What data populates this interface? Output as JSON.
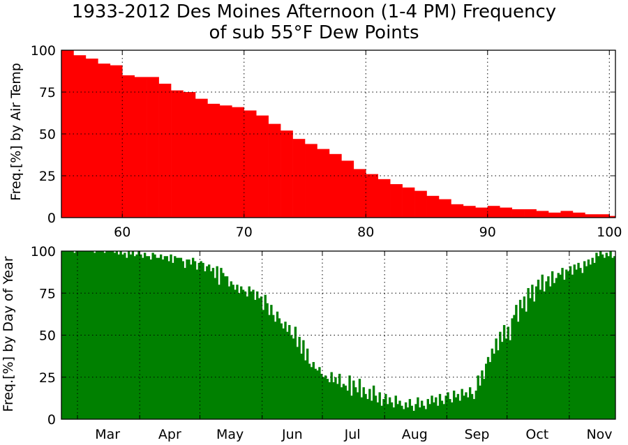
{
  "title_line1": "1933-2012 Des Moines Afternoon (1-4 PM) Frequency",
  "title_line2": "of sub 55°F Dew Points",
  "chart_data": [
    {
      "type": "bar",
      "name": "air-temp",
      "ylabel": "Freq.[%] by Air Temp",
      "xlim": [
        55,
        100.5
      ],
      "ylim": [
        0,
        100
      ],
      "xticks": [
        "60",
        "70",
        "80",
        "90",
        "100"
      ],
      "xtick_values": [
        60,
        70,
        80,
        90,
        100
      ],
      "yticks": [
        "0",
        "25",
        "50",
        "75",
        "100"
      ],
      "ytick_values": [
        0,
        25,
        50,
        75,
        100
      ],
      "grid": true,
      "color": "#ff0000",
      "x": [
        55,
        56,
        57,
        58,
        59,
        60,
        61,
        62,
        63,
        64,
        65,
        66,
        67,
        68,
        69,
        70,
        71,
        72,
        73,
        74,
        75,
        76,
        77,
        78,
        79,
        80,
        81,
        82,
        83,
        84,
        85,
        86,
        87,
        88,
        89,
        90,
        91,
        92,
        93,
        94,
        95,
        96,
        97,
        98,
        99,
        100
      ],
      "values": [
        100,
        97,
        95,
        92,
        91,
        85,
        84,
        84,
        80,
        76,
        75,
        71,
        68,
        67,
        66,
        64,
        61,
        56,
        52,
        47,
        44,
        41,
        38,
        34,
        29,
        26,
        23,
        20,
        18,
        16,
        13,
        11,
        8,
        7,
        6,
        7,
        6,
        5,
        5,
        4,
        3,
        4,
        3,
        2,
        2,
        1
      ]
    },
    {
      "type": "bar",
      "name": "day-of-year",
      "ylabel": "Freq.[%] by Day of Year",
      "ylim": [
        0,
        100
      ],
      "yticks": [
        "0",
        "25",
        "50",
        "75",
        "100"
      ],
      "ytick_values": [
        0,
        25,
        50,
        75,
        100
      ],
      "months": [
        "Mar",
        "Apr",
        "May",
        "Jun",
        "Jul",
        "Aug",
        "Sep",
        "Oct",
        "Nov"
      ],
      "grid": true,
      "color": "#008000",
      "x_start": "Feb 21",
      "x_end": "Nov 30",
      "values": [
        100,
        100,
        100,
        100,
        100,
        100,
        99,
        100,
        100,
        100,
        100,
        100,
        100,
        100,
        100,
        100,
        99,
        100,
        100,
        100,
        100,
        99,
        100,
        100,
        100,
        100,
        99,
        100,
        98,
        100,
        98,
        99,
        96,
        100,
        98,
        100,
        97,
        98,
        100,
        98,
        96,
        99,
        97,
        97,
        95,
        99,
        98,
        96,
        96,
        98,
        95,
        97,
        97,
        94,
        98,
        93,
        97,
        96,
        96,
        96,
        94,
        90,
        95,
        95,
        92,
        96,
        94,
        89,
        93,
        94,
        93,
        88,
        91,
        92,
        88,
        90,
        84,
        91,
        80,
        90,
        87,
        85,
        85,
        79,
        82,
        80,
        77,
        80,
        75,
        79,
        77,
        76,
        73,
        79,
        76,
        77,
        71,
        76,
        72,
        73,
        65,
        74,
        69,
        62,
        68,
        62,
        58,
        64,
        60,
        57,
        54,
        58,
        52,
        56,
        50,
        48,
        55,
        43,
        49,
        39,
        47,
        35,
        42,
        33,
        31,
        34,
        30,
        29,
        31,
        27,
        25,
        26,
        24,
        22,
        28,
        22,
        25,
        21,
        27,
        19,
        21,
        20,
        17,
        26,
        14,
        23,
        19,
        16,
        24,
        13,
        19,
        15,
        12,
        18,
        11,
        20,
        14,
        10,
        16,
        8,
        12,
        15,
        9,
        13,
        10,
        7,
        14,
        9,
        11,
        8,
        6,
        10,
        7,
        12,
        8,
        5,
        9,
        13,
        7,
        11,
        8,
        6,
        12,
        9,
        14,
        10,
        13,
        8,
        15,
        11,
        9,
        14,
        16,
        12,
        10,
        17,
        13,
        15,
        11,
        18,
        14,
        16,
        13,
        19,
        15,
        12,
        17,
        26,
        20,
        29,
        24,
        33,
        37,
        34,
        42,
        39,
        48,
        41,
        52,
        46,
        56,
        48,
        55,
        47,
        60,
        62,
        68,
        58,
        71,
        66,
        73,
        64,
        78,
        72,
        80,
        70,
        79,
        83,
        77,
        86,
        76,
        82,
        85,
        79,
        88,
        81,
        84,
        87,
        86,
        90,
        83,
        89,
        88,
        91,
        86,
        92,
        89,
        93,
        90,
        87,
        94,
        91,
        95,
        92,
        96,
        93,
        99,
        97,
        100,
        98,
        96,
        99,
        97,
        100,
        96,
        97
      ]
    }
  ]
}
